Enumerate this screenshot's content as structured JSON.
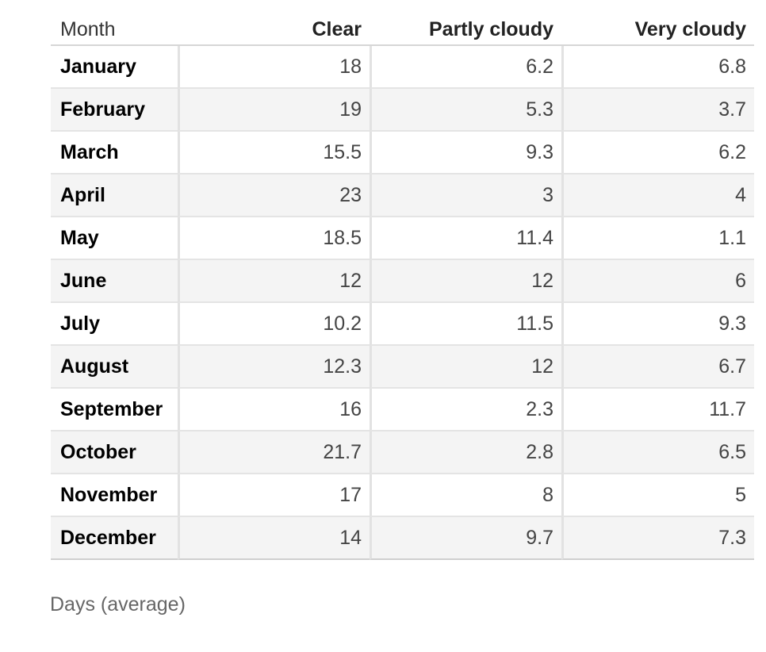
{
  "chart_data": {
    "type": "table",
    "columns": [
      "Month",
      "Clear",
      "Partly cloudy",
      "Very cloudy"
    ],
    "rows": [
      {
        "month": "January",
        "values": [
          "18",
          "6.2",
          "6.8"
        ]
      },
      {
        "month": "February",
        "values": [
          "19",
          "5.3",
          "3.7"
        ]
      },
      {
        "month": "March",
        "values": [
          "15.5",
          "9.3",
          "6.2"
        ]
      },
      {
        "month": "April",
        "values": [
          "23",
          "3",
          "4"
        ]
      },
      {
        "month": "May",
        "values": [
          "18.5",
          "11.4",
          "1.1"
        ]
      },
      {
        "month": "June",
        "values": [
          "12",
          "12",
          "6"
        ]
      },
      {
        "month": "July",
        "values": [
          "10.2",
          "11.5",
          "9.3"
        ]
      },
      {
        "month": "August",
        "values": [
          "12.3",
          "12",
          "6.7"
        ]
      },
      {
        "month": "September",
        "values": [
          "16",
          "2.3",
          "11.7"
        ]
      },
      {
        "month": "October",
        "values": [
          "21.7",
          "2.8",
          "6.5"
        ]
      },
      {
        "month": "November",
        "values": [
          "17",
          "8",
          "5"
        ]
      },
      {
        "month": "December",
        "values": [
          "14",
          "9.7",
          "7.3"
        ]
      }
    ],
    "caption": "Days (average)"
  }
}
